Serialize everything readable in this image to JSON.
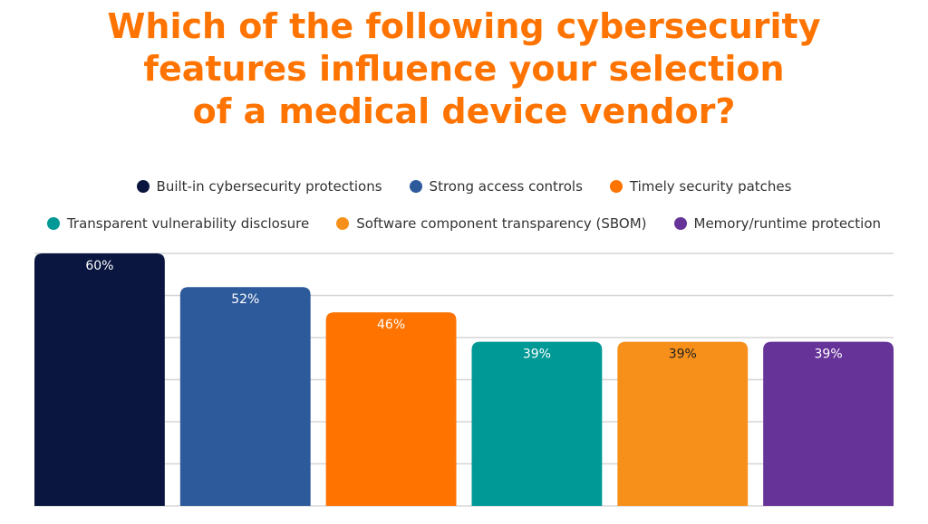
{
  "chart_data": {
    "type": "bar",
    "title": "Which of the following cybersecurity features influence your selection of a medical device vendor?",
    "title_lines": [
      "Which of the following cybersecurity",
      "features influence your selection",
      "of a medical device vendor?"
    ],
    "categories": [
      "Built-in cybersecurity protections",
      "Strong access controls",
      "Timely security patches",
      "Transparent vulnerability disclosure",
      "Software component transparency (SBOM)",
      "Memory/runtime protection"
    ],
    "values": [
      60,
      52,
      46,
      39,
      39,
      39
    ],
    "data_labels": [
      "60%",
      "52%",
      "46%",
      "39%",
      "39%",
      "39%"
    ],
    "colors": [
      "#0a1640",
      "#2d5a9b",
      "#ff7300",
      "#009996",
      "#f7901a",
      "#663399"
    ],
    "label_colors": [
      "#ffffff",
      "#ffffff",
      "#ffffff",
      "#ffffff",
      "#222222",
      "#ffffff"
    ],
    "ylim": [
      0,
      60
    ],
    "grid": true,
    "legend_position": "top",
    "xlabel": "",
    "ylabel": ""
  }
}
